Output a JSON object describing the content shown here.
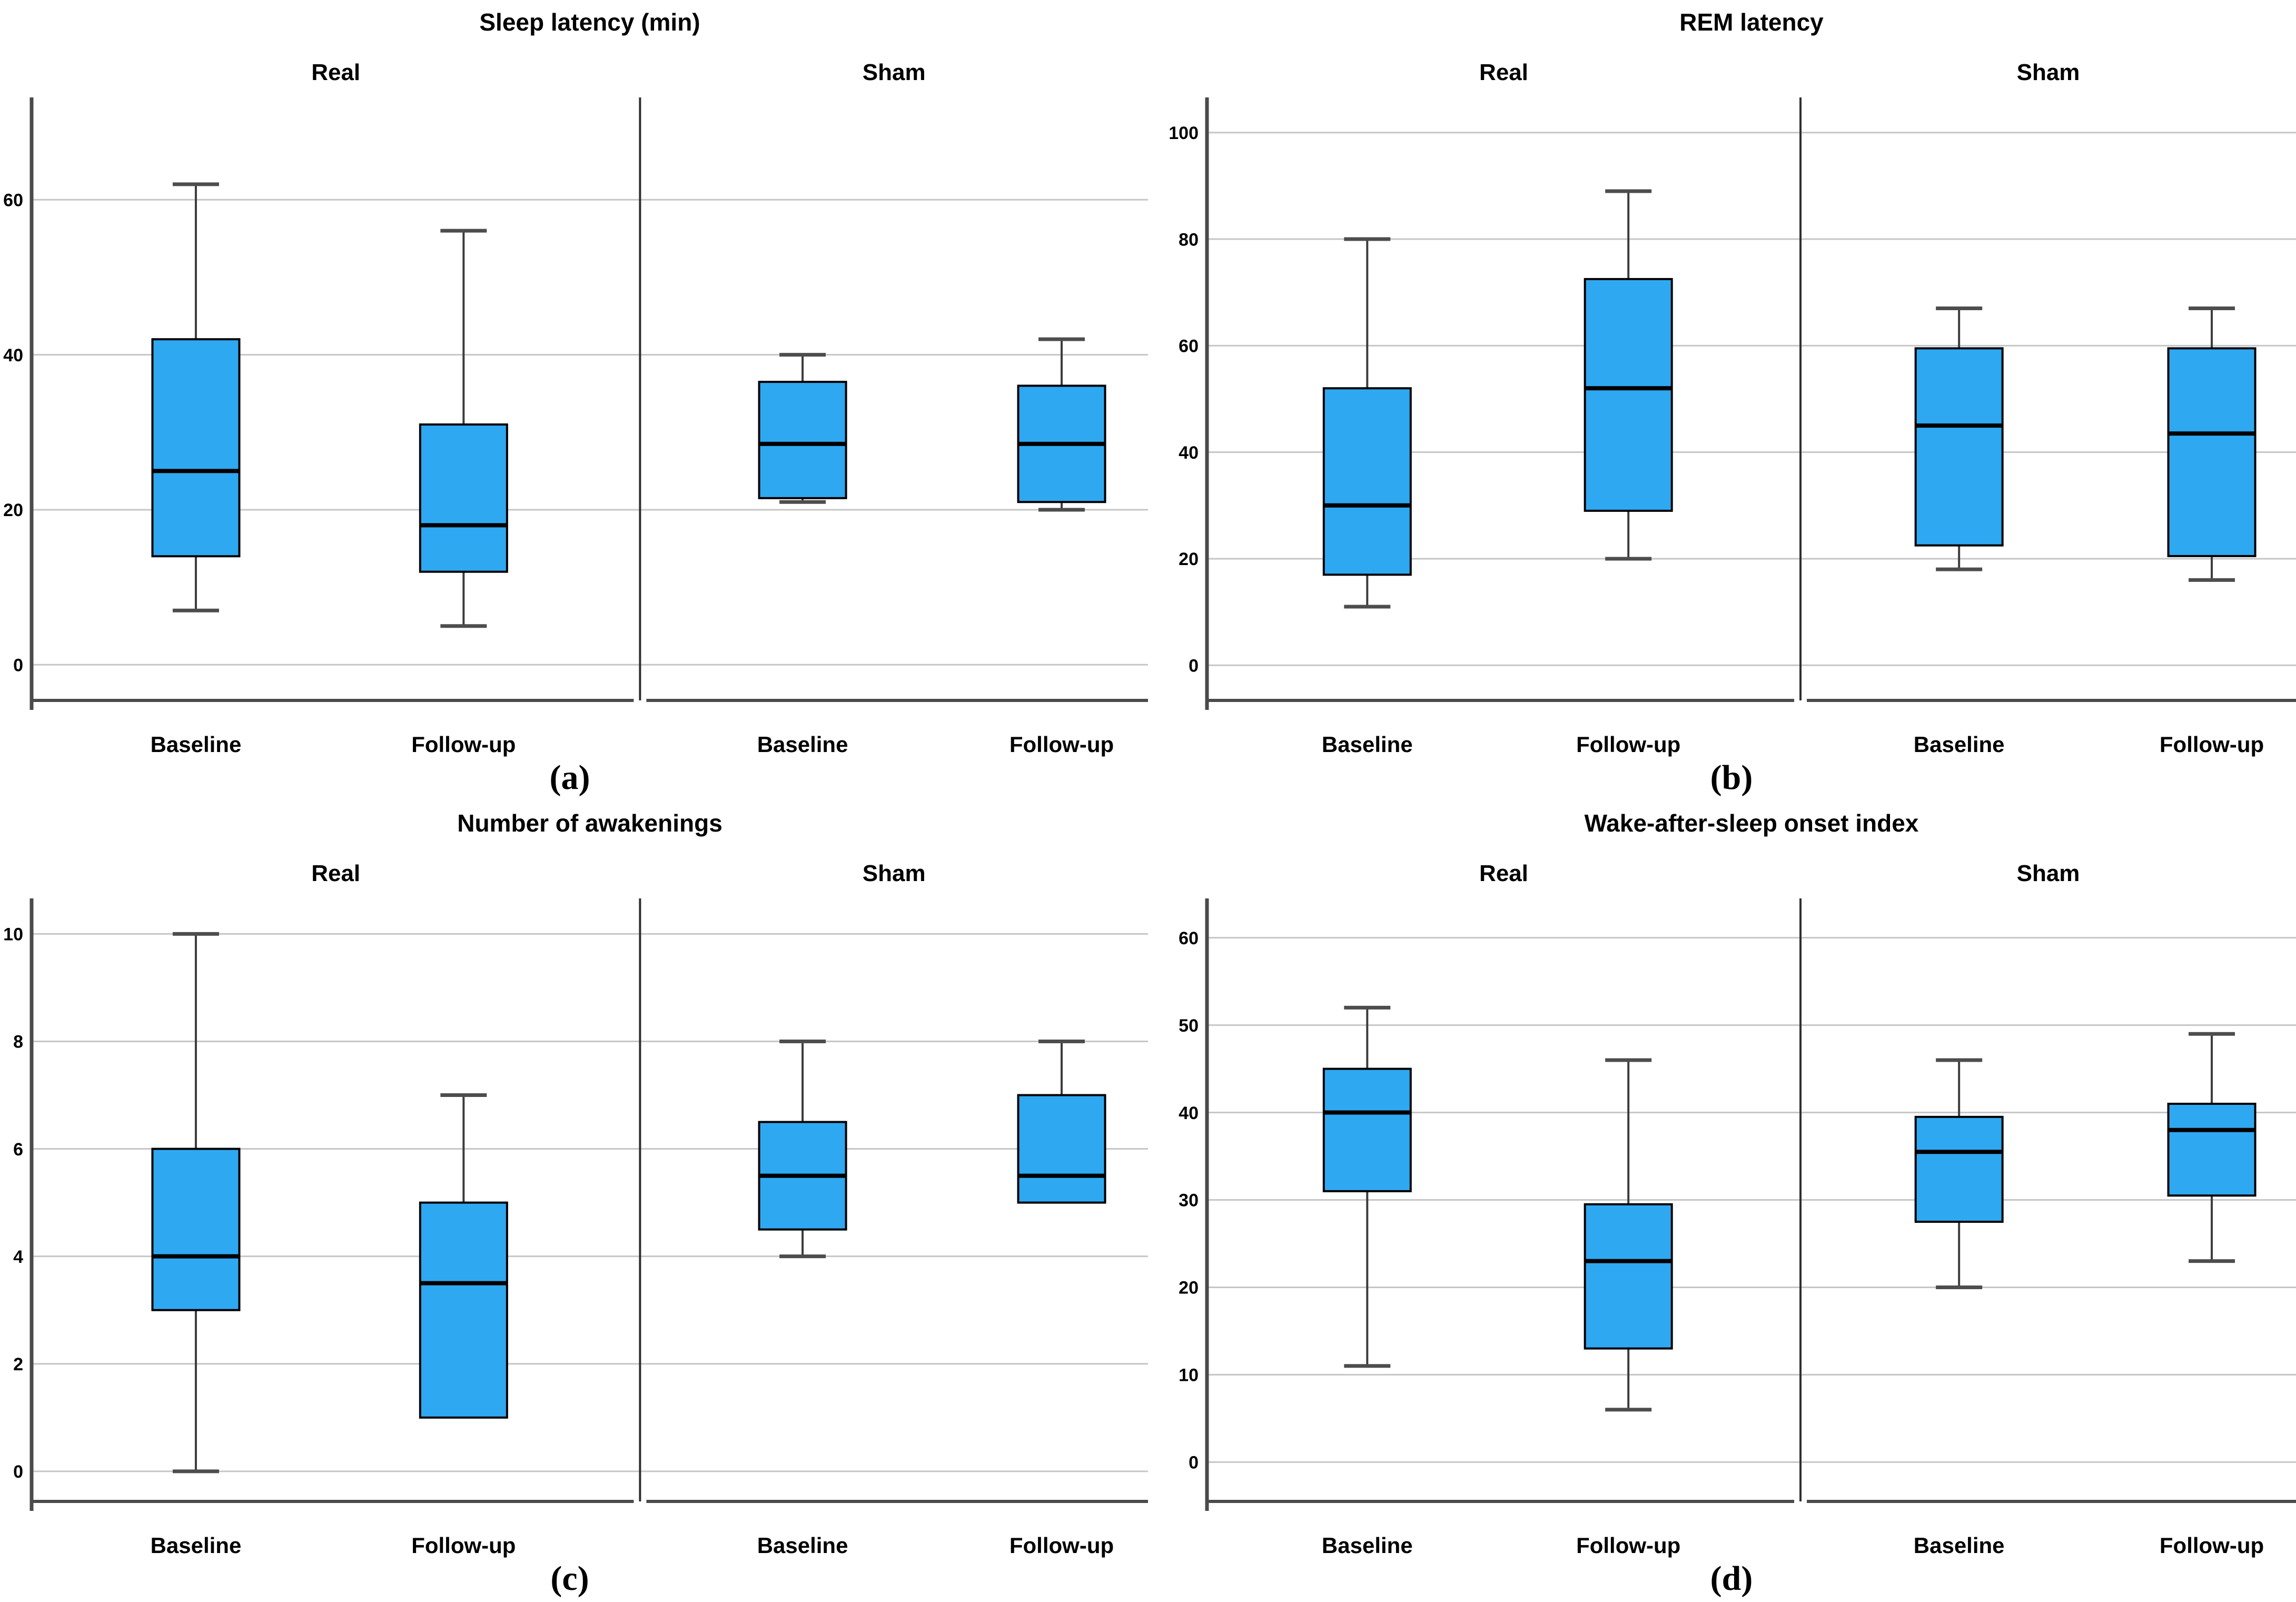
{
  "figure": {
    "background": "#ffffff",
    "panel_order": [
      "a",
      "b",
      "c",
      "d"
    ]
  },
  "style": {
    "box_fill": "#2FA8F2",
    "box_border": "#000000",
    "median_color": "#000000",
    "whisker_color": "#3C3C3C",
    "cap_color": "#4D4D4D",
    "gridline_color": "#C6C6C6",
    "axis_color": "#4A4A4A",
    "divider_color": "#2E2E2E",
    "text_color": "#000000"
  },
  "chart_data": [
    {
      "id": "a",
      "type": "boxplot",
      "panel_label": "(a)",
      "title": "Sleep latency (min)",
      "grid_position": {
        "row": 0,
        "col": 0
      },
      "groups": [
        "Real",
        "Sham"
      ],
      "categories": [
        "Baseline",
        "Follow-up"
      ],
      "ylim": [
        -4.6,
        73.2
      ],
      "yticks": [
        0,
        20,
        40,
        60
      ],
      "grid": true,
      "legend": "none",
      "boxes": [
        {
          "group": "Real",
          "category": "Baseline",
          "whisker_low": 7,
          "q1": 14,
          "median": 25,
          "q3": 42,
          "whisker_high": 62
        },
        {
          "group": "Real",
          "category": "Follow-up",
          "whisker_low": 5,
          "q1": 12,
          "median": 18,
          "q3": 31,
          "whisker_high": 56
        },
        {
          "group": "Sham",
          "category": "Baseline",
          "whisker_low": 21,
          "q1": 21.5,
          "median": 28.5,
          "q3": 36.5,
          "whisker_high": 40
        },
        {
          "group": "Sham",
          "category": "Follow-up",
          "whisker_low": 20,
          "q1": 21,
          "median": 28.5,
          "q3": 36,
          "whisker_high": 42
        }
      ]
    },
    {
      "id": "b",
      "type": "boxplot",
      "panel_label": "(b)",
      "title": "REM latency",
      "grid_position": {
        "row": 0,
        "col": 1
      },
      "groups": [
        "Real",
        "Sham"
      ],
      "categories": [
        "Baseline",
        "Follow-up"
      ],
      "ylim": [
        -6.6,
        106.6
      ],
      "yticks": [
        0,
        20,
        40,
        60,
        80,
        100
      ],
      "grid": true,
      "legend": "none",
      "boxes": [
        {
          "group": "Real",
          "category": "Baseline",
          "whisker_low": 11,
          "q1": 17,
          "median": 30,
          "q3": 52,
          "whisker_high": 80
        },
        {
          "group": "Real",
          "category": "Follow-up",
          "whisker_low": 20,
          "q1": 29,
          "median": 52,
          "q3": 72.5,
          "whisker_high": 89
        },
        {
          "group": "Sham",
          "category": "Baseline",
          "whisker_low": 18,
          "q1": 22.5,
          "median": 45,
          "q3": 59.5,
          "whisker_high": 67
        },
        {
          "group": "Sham",
          "category": "Follow-up",
          "whisker_low": 16,
          "q1": 20.5,
          "median": 43.5,
          "q3": 59.5,
          "whisker_high": 67
        }
      ]
    },
    {
      "id": "c",
      "type": "boxplot",
      "panel_label": "(c)",
      "title": "Number of awakenings",
      "grid_position": {
        "row": 1,
        "col": 0
      },
      "groups": [
        "Real",
        "Sham"
      ],
      "categories": [
        "Baseline",
        "Follow-up"
      ],
      "ylim": [
        -0.56,
        10.66
      ],
      "yticks": [
        0,
        2,
        4,
        6,
        8,
        10
      ],
      "grid": true,
      "legend": "none",
      "boxes": [
        {
          "group": "Real",
          "category": "Baseline",
          "whisker_low": 0,
          "q1": 3,
          "median": 4,
          "q3": 6,
          "whisker_high": 10
        },
        {
          "group": "Real",
          "category": "Follow-up",
          "whisker_low": 1,
          "q1": 1,
          "median": 3.5,
          "q3": 5,
          "whisker_high": 7
        },
        {
          "group": "Sham",
          "category": "Baseline",
          "whisker_low": 4,
          "q1": 4.5,
          "median": 5.5,
          "q3": 6.5,
          "whisker_high": 8
        },
        {
          "group": "Sham",
          "category": "Follow-up",
          "whisker_low": 5,
          "q1": 5,
          "median": 5.5,
          "q3": 7,
          "whisker_high": 8
        }
      ]
    },
    {
      "id": "d",
      "type": "boxplot",
      "panel_label": "(d)",
      "title": "Wake-after-sleep onset index",
      "grid_position": {
        "row": 1,
        "col": 1
      },
      "groups": [
        "Real",
        "Sham"
      ],
      "categories": [
        "Baseline",
        "Follow-up"
      ],
      "ylim": [
        -4.5,
        64.5
      ],
      "yticks": [
        0,
        10,
        20,
        30,
        40,
        50,
        60
      ],
      "grid": true,
      "legend": "none",
      "boxes": [
        {
          "group": "Real",
          "category": "Baseline",
          "whisker_low": 11,
          "q1": 31,
          "median": 40,
          "q3": 45,
          "whisker_high": 52
        },
        {
          "group": "Real",
          "category": "Follow-up",
          "whisker_low": 6,
          "q1": 13,
          "median": 23,
          "q3": 29.5,
          "whisker_high": 46
        },
        {
          "group": "Sham",
          "category": "Baseline",
          "whisker_low": 20,
          "q1": 27.5,
          "median": 35.5,
          "q3": 39.5,
          "whisker_high": 46
        },
        {
          "group": "Sham",
          "category": "Follow-up",
          "whisker_low": 23,
          "q1": 30.5,
          "median": 38,
          "q3": 41,
          "whisker_high": 49
        }
      ]
    }
  ]
}
